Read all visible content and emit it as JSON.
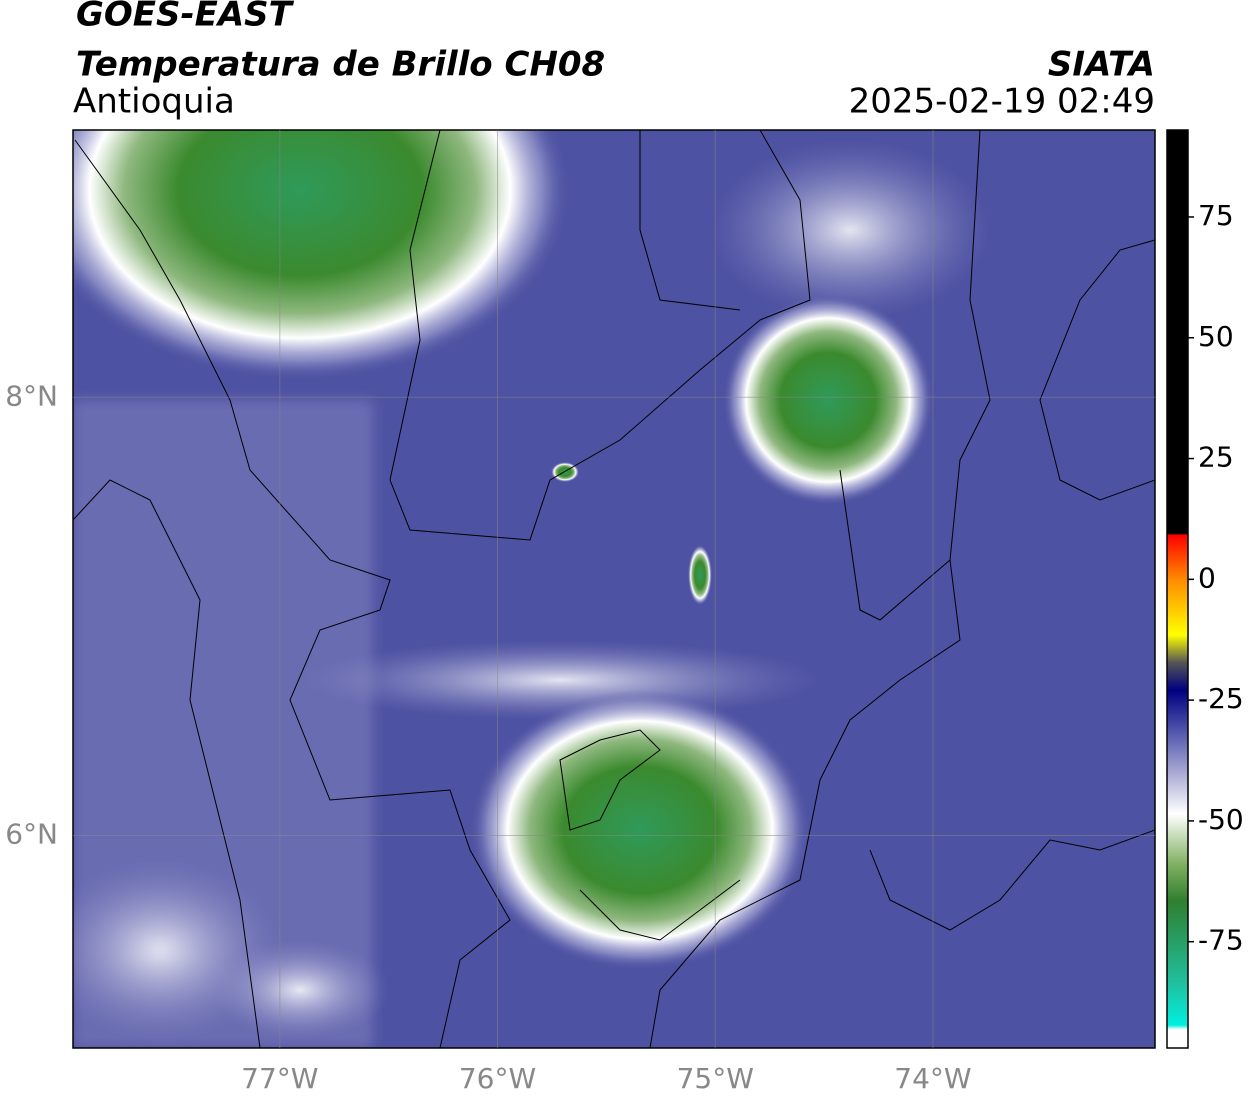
{
  "header": {
    "satellite": "GOES-EAST",
    "product": "Temperatura de Brillo CH08",
    "region": "Antioquia",
    "source": "SIATA",
    "timestamp": "2025-02-19 02:49"
  },
  "map": {
    "xlim": [
      -77.95,
      -72.98
    ],
    "ylim": [
      5.03,
      9.22
    ],
    "xticks": [
      {
        "value": -77,
        "label": "77°W"
      },
      {
        "value": -76,
        "label": "76°W"
      },
      {
        "value": -75,
        "label": "75°W"
      },
      {
        "value": -74,
        "label": "74°W"
      }
    ],
    "yticks": [
      {
        "value": 6,
        "label": "6°N"
      },
      {
        "value": 8,
        "label": "8°N"
      }
    ],
    "grid": true
  },
  "colorbar": {
    "lim": [
      -97,
      93
    ],
    "ticks": [
      -75,
      -50,
      -25,
      0,
      25,
      50,
      75
    ]
  }
}
